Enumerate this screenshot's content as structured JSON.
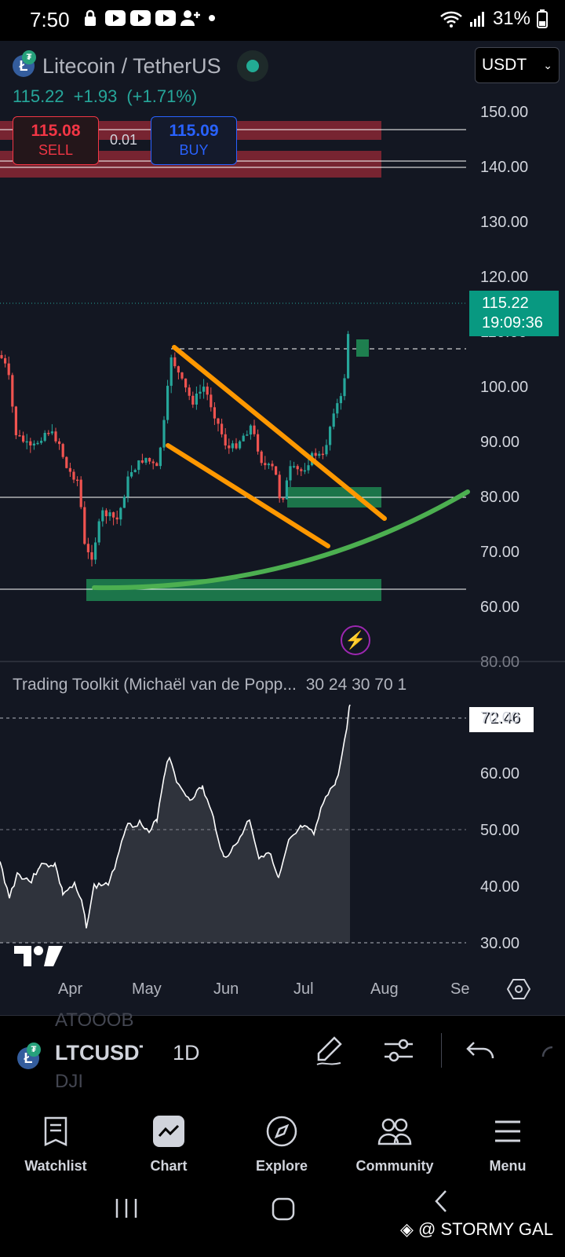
{
  "status_bar": {
    "time": "7:50",
    "battery": "31%"
  },
  "header": {
    "title": "Litecoin / TetherUS",
    "price": "115.22",
    "change": "+1.93",
    "change_pct": "(+1.71%)",
    "currency": "USDT"
  },
  "trade": {
    "sell_price": "115.08",
    "sell_label": "SELL",
    "spread": "0.01",
    "buy_price": "115.09",
    "buy_label": "BUY"
  },
  "price_axis": [
    "150.00",
    "140.00",
    "130.00",
    "120.00",
    "110.00",
    "100.00",
    "90.00",
    "80.00",
    "70.00",
    "60.00",
    "80.00"
  ],
  "last_price_tag": {
    "price": "115.22",
    "countdown": "19:09:36"
  },
  "indicator": {
    "title": "Trading Toolkit (Michaël van de Popp...",
    "params": "30 24 30 70 1",
    "value": "72.46",
    "axis": [
      "70.00",
      "60.00",
      "50.00",
      "40.00",
      "30.00"
    ]
  },
  "time_axis": [
    "Apr",
    "May",
    "Jun",
    "Jul",
    "Aug",
    "Se"
  ],
  "toolbar": {
    "symbol": "LTCUSDT",
    "interval": "1D",
    "ghost_top": "ATOOOB",
    "ghost_bottom": "DJI"
  },
  "nav": {
    "watchlist": "Watchlist",
    "chart": "Chart",
    "explore": "Explore",
    "community": "Community",
    "menu": "Menu"
  },
  "watermark": "@ STORMY GAL",
  "colors": {
    "up": "#26a69a",
    "down": "#ef5350",
    "bg": "#131722",
    "accent": "#089981"
  },
  "icons": {
    "status": [
      "lock-icon",
      "youtube-icon",
      "add-user-icon",
      "wifi-icon",
      "signal-icon",
      "battery-icon"
    ],
    "toolbar": [
      "draw-pen-icon",
      "indicator-settings-icon",
      "undo-icon"
    ],
    "nav": [
      "watchlist-icon",
      "chart-icon",
      "compass-icon",
      "community-icon",
      "menu-icon"
    ]
  }
}
